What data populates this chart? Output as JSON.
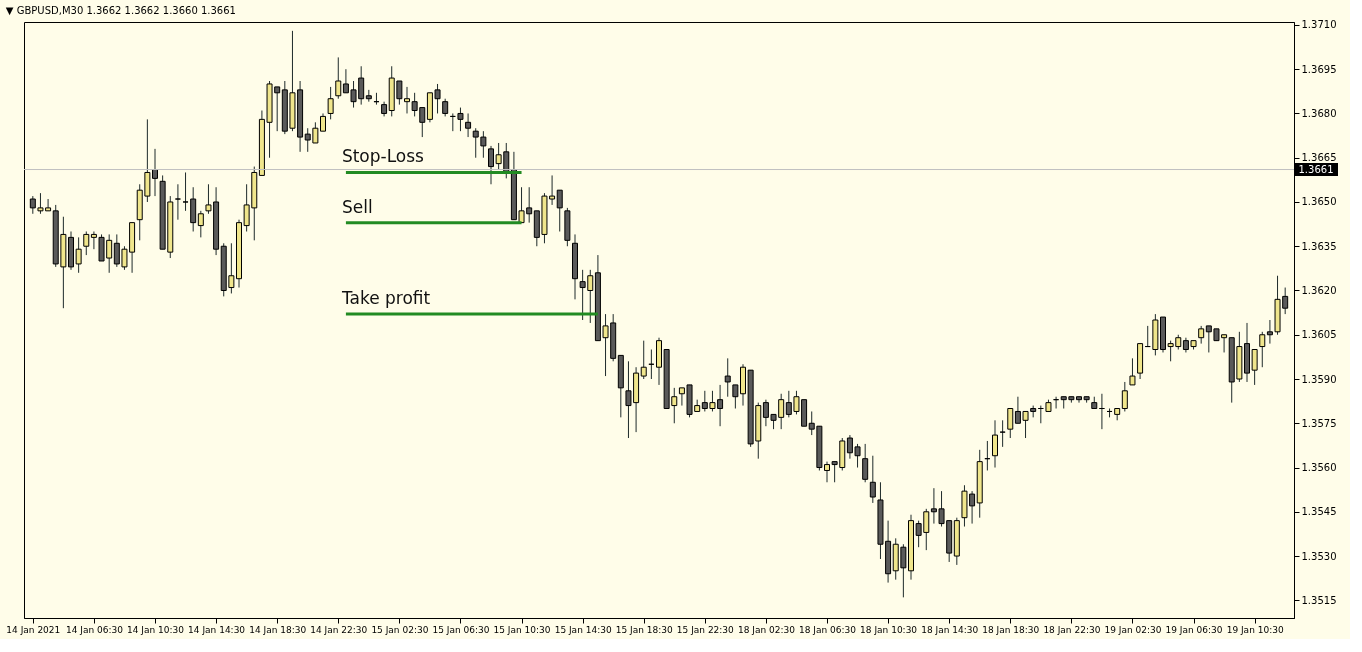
{
  "chart_data": {
    "type": "candlestick",
    "title": "▼ GBPUSD,M30  1.3662 1.3662 1.3660 1.3661",
    "categories": [
      "14 Jan 2021",
      null,
      null,
      null,
      null,
      null,
      null,
      null,
      "14 Jan 06:30",
      null,
      null,
      null,
      null,
      null,
      null,
      null,
      "14 Jan 10:30",
      null,
      null,
      null,
      null,
      null,
      null,
      null,
      "14 Jan 14:30",
      null,
      null,
      null,
      null,
      null,
      null,
      null,
      "14 Jan 18:30",
      null,
      null,
      null,
      null,
      null,
      null,
      null,
      "14 Jan 22:30",
      null,
      null,
      null,
      null,
      null,
      null,
      null,
      "15 Jan 02:30",
      null,
      null,
      null,
      null,
      null,
      null,
      null,
      "15 Jan 06:30",
      null,
      null,
      null,
      null,
      null,
      null,
      null,
      "15 Jan 10:30",
      null,
      null,
      null,
      null,
      null,
      null,
      null,
      "15 Jan 14:30",
      null,
      null,
      null,
      null,
      null,
      null,
      null,
      "15 Jan 18:30",
      null,
      null,
      null,
      null,
      null,
      null,
      null,
      "15 Jan 22:30",
      null,
      null,
      null,
      null,
      null,
      null,
      null,
      "18 Jan 02:30",
      null,
      null,
      null,
      null,
      null,
      null,
      null,
      "18 Jan 06:30",
      null,
      null,
      null,
      null,
      null,
      null,
      null,
      "18 Jan 10:30",
      null,
      null,
      null,
      null,
      null,
      null,
      null,
      "18 Jan 14:30",
      null,
      null,
      null,
      null,
      null,
      null,
      null,
      "18 Jan 18:30",
      null,
      null,
      null,
      null,
      null,
      null,
      null,
      "18 Jan 22:30",
      null,
      null,
      null,
      null,
      null,
      null,
      null,
      "19 Jan 02:30",
      null,
      null,
      null,
      null,
      null,
      null,
      null,
      "19 Jan 06:30",
      null,
      null,
      null,
      null,
      null,
      null,
      null,
      "19 Jan 10:30",
      null,
      null,
      null,
      null
    ],
    "ohlc": [
      [
        1.3651,
        1.3652,
        1.3646,
        1.3648
      ],
      [
        1.3647,
        1.3653,
        1.3646,
        1.3648
      ],
      [
        1.3647,
        1.3651,
        1.3647,
        1.3648
      ],
      [
        1.3647,
        1.3649,
        1.3628,
        1.3629
      ],
      [
        1.3628,
        1.3645,
        1.3614,
        1.3639
      ],
      [
        1.3638,
        1.364,
        1.3627,
        1.3628
      ],
      [
        1.3629,
        1.3638,
        1.3626,
        1.3634
      ],
      [
        1.3635,
        1.364,
        1.3632,
        1.3639
      ],
      [
        1.3638,
        1.364,
        1.3634,
        1.3639
      ],
      [
        1.3638,
        1.3639,
        1.363,
        1.363
      ],
      [
        1.3631,
        1.3639,
        1.3626,
        1.3637
      ],
      [
        1.3636,
        1.3639,
        1.3628,
        1.3629
      ],
      [
        1.3628,
        1.3635,
        1.3627,
        1.3634
      ],
      [
        1.3633,
        1.3643,
        1.3626,
        1.3643
      ],
      [
        1.3644,
        1.3656,
        1.3637,
        1.3654
      ],
      [
        1.3652,
        1.3678,
        1.365,
        1.366
      ],
      [
        1.3661,
        1.3668,
        1.3652,
        1.3658
      ],
      [
        1.3657,
        1.3659,
        1.3634,
        1.3634
      ],
      [
        1.3633,
        1.3652,
        1.3631,
        1.365
      ],
      [
        1.3651,
        1.3656,
        1.3644,
        1.3651
      ],
      [
        1.365,
        1.366,
        1.3647,
        1.365
      ],
      [
        1.3651,
        1.3655,
        1.364,
        1.3643
      ],
      [
        1.3642,
        1.3647,
        1.3638,
        1.3646
      ],
      [
        1.3647,
        1.3656,
        1.3646,
        1.3649
      ],
      [
        1.365,
        1.3655,
        1.3632,
        1.3634
      ],
      [
        1.3635,
        1.3636,
        1.3618,
        1.362
      ],
      [
        1.3621,
        1.3636,
        1.3619,
        1.3625
      ],
      [
        1.3624,
        1.3644,
        1.3621,
        1.3643
      ],
      [
        1.3642,
        1.3656,
        1.364,
        1.3649
      ],
      [
        1.3648,
        1.3662,
        1.3637,
        1.366
      ],
      [
        1.3659,
        1.3681,
        1.3659,
        1.3678
      ],
      [
        1.3677,
        1.3691,
        1.3665,
        1.369
      ],
      [
        1.3689,
        1.3689,
        1.3674,
        1.3687
      ],
      [
        1.3688,
        1.3691,
        1.3673,
        1.3674
      ],
      [
        1.3675,
        1.3708,
        1.3674,
        1.3687
      ],
      [
        1.3688,
        1.3691,
        1.3667,
        1.3672
      ],
      [
        1.3673,
        1.3675,
        1.3667,
        1.3671
      ],
      [
        1.367,
        1.3677,
        1.367,
        1.3675
      ],
      [
        1.3674,
        1.368,
        1.3674,
        1.3679
      ],
      [
        1.368,
        1.3689,
        1.3678,
        1.3685
      ],
      [
        1.3686,
        1.3699,
        1.3685,
        1.3691
      ],
      [
        1.369,
        1.3695,
        1.3687,
        1.3687
      ],
      [
        1.3688,
        1.3691,
        1.3682,
        1.3684
      ],
      [
        1.3692,
        1.3696,
        1.3683,
        1.3685
      ],
      [
        1.3686,
        1.3688,
        1.3684,
        1.3685
      ],
      [
        1.3684,
        1.3687,
        1.3683,
        1.3684
      ],
      [
        1.3683,
        1.3684,
        1.3679,
        1.368
      ],
      [
        1.3681,
        1.3696,
        1.3679,
        1.3692
      ],
      [
        1.3691,
        1.3691,
        1.3683,
        1.3685
      ],
      [
        1.3684,
        1.3689,
        1.368,
        1.3685
      ],
      [
        1.3684,
        1.3687,
        1.3679,
        1.3681
      ],
      [
        1.3682,
        1.3682,
        1.3672,
        1.3677
      ],
      [
        1.3678,
        1.3687,
        1.3677,
        1.3687
      ],
      [
        1.3688,
        1.369,
        1.368,
        1.3685
      ],
      [
        1.3684,
        1.3685,
        1.3679,
        1.368
      ],
      [
        1.3679,
        1.368,
        1.3674,
        1.3679
      ],
      [
        1.368,
        1.3682,
        1.3674,
        1.3678
      ],
      [
        1.3677,
        1.368,
        1.3672,
        1.3675
      ],
      [
        1.3674,
        1.3675,
        1.3665,
        1.3672
      ],
      [
        1.3672,
        1.3674,
        1.3665,
        1.3669
      ],
      [
        1.3668,
        1.3669,
        1.3656,
        1.3662
      ],
      [
        1.3663,
        1.367,
        1.3661,
        1.3666
      ],
      [
        1.3667,
        1.367,
        1.3658,
        1.366
      ],
      [
        1.3661,
        1.3667,
        1.3644,
        1.3644
      ],
      [
        1.3643,
        1.3655,
        1.3643,
        1.3647
      ],
      [
        1.3648,
        1.3655,
        1.3643,
        1.3646
      ],
      [
        1.3647,
        1.3647,
        1.3635,
        1.3638
      ],
      [
        1.3639,
        1.3653,
        1.3636,
        1.3652
      ],
      [
        1.3651,
        1.3659,
        1.3649,
        1.3652
      ],
      [
        1.3654,
        1.3654,
        1.364,
        1.3648
      ],
      [
        1.3647,
        1.3648,
        1.3635,
        1.3637
      ],
      [
        1.3636,
        1.3639,
        1.3617,
        1.3624
      ],
      [
        1.3623,
        1.3627,
        1.361,
        1.3621
      ],
      [
        1.362,
        1.3627,
        1.3609,
        1.3625
      ],
      [
        1.3626,
        1.3632,
        1.3603,
        1.3603
      ],
      [
        1.3604,
        1.3612,
        1.3591,
        1.3608
      ],
      [
        1.3609,
        1.3612,
        1.3596,
        1.3597
      ],
      [
        1.3598,
        1.3598,
        1.3577,
        1.3587
      ],
      [
        1.3586,
        1.3596,
        1.357,
        1.3581
      ],
      [
        1.3582,
        1.3594,
        1.3572,
        1.3592
      ],
      [
        1.3591,
        1.3603,
        1.359,
        1.3594
      ],
      [
        1.3595,
        1.36,
        1.359,
        1.3595
      ],
      [
        1.3594,
        1.3604,
        1.3588,
        1.3603
      ],
      [
        1.36,
        1.36,
        1.358,
        1.358
      ],
      [
        1.3581,
        1.3587,
        1.3575,
        1.3584
      ],
      [
        1.3585,
        1.3587,
        1.3581,
        1.3587
      ],
      [
        1.3588,
        1.3588,
        1.3577,
        1.3578
      ],
      [
        1.3579,
        1.3583,
        1.3579,
        1.3581
      ],
      [
        1.3582,
        1.3586,
        1.3579,
        1.358
      ],
      [
        1.358,
        1.3586,
        1.3579,
        1.3582
      ],
      [
        1.3583,
        1.3588,
        1.3574,
        1.358
      ],
      [
        1.3591,
        1.3597,
        1.3584,
        1.3589
      ],
      [
        1.3588,
        1.3588,
        1.358,
        1.3584
      ],
      [
        1.3585,
        1.3595,
        1.3581,
        1.3594
      ],
      [
        1.3593,
        1.3593,
        1.3567,
        1.3568
      ],
      [
        1.3569,
        1.3582,
        1.3563,
        1.3581
      ],
      [
        1.3582,
        1.3583,
        1.3574,
        1.3577
      ],
      [
        1.3578,
        1.3578,
        1.3573,
        1.3576
      ],
      [
        1.3577,
        1.3585,
        1.3573,
        1.3583
      ],
      [
        1.3582,
        1.3586,
        1.3577,
        1.3578
      ],
      [
        1.3579,
        1.3586,
        1.3578,
        1.3584
      ],
      [
        1.3583,
        1.3583,
        1.3574,
        1.3574
      ],
      [
        1.3575,
        1.3579,
        1.3571,
        1.3573
      ],
      [
        1.3574,
        1.3574,
        1.3559,
        1.356
      ],
      [
        1.3559,
        1.3562,
        1.3555,
        1.3561
      ],
      [
        1.3562,
        1.3562,
        1.3555,
        1.3561
      ],
      [
        1.356,
        1.357,
        1.3559,
        1.3569
      ],
      [
        1.357,
        1.3571,
        1.3563,
        1.3565
      ],
      [
        1.3567,
        1.3568,
        1.356,
        1.3564
      ],
      [
        1.3563,
        1.3568,
        1.3555,
        1.3556
      ],
      [
        1.3555,
        1.3564,
        1.3548,
        1.355
      ],
      [
        1.3549,
        1.3555,
        1.3529,
        1.3534
      ],
      [
        1.3535,
        1.3542,
        1.3521,
        1.3524
      ],
      [
        1.3525,
        1.3536,
        1.3522,
        1.3534
      ],
      [
        1.3533,
        1.3534,
        1.3516,
        1.3526
      ],
      [
        1.3525,
        1.3544,
        1.3522,
        1.3542
      ],
      [
        1.3541,
        1.3542,
        1.3533,
        1.3537
      ],
      [
        1.3538,
        1.3546,
        1.3532,
        1.3545
      ],
      [
        1.3546,
        1.3553,
        1.3541,
        1.3545
      ],
      [
        1.3546,
        1.3552,
        1.354,
        1.3541
      ],
      [
        1.3542,
        1.3542,
        1.3528,
        1.3531
      ],
      [
        1.353,
        1.3543,
        1.3527,
        1.3542
      ],
      [
        1.3543,
        1.3554,
        1.354,
        1.3552
      ],
      [
        1.3551,
        1.3552,
        1.3541,
        1.3547
      ],
      [
        1.3548,
        1.3566,
        1.3543,
        1.3562
      ],
      [
        1.3563,
        1.3569,
        1.3559,
        1.3563
      ],
      [
        1.3564,
        1.3576,
        1.356,
        1.3571
      ],
      [
        1.3572,
        1.3576,
        1.3567,
        1.3572
      ],
      [
        1.3573,
        1.358,
        1.357,
        1.358
      ],
      [
        1.3579,
        1.3584,
        1.3575,
        1.3575
      ],
      [
        1.3576,
        1.3579,
        1.357,
        1.3579
      ],
      [
        1.358,
        1.3581,
        1.3577,
        1.3579
      ],
      [
        1.358,
        1.3581,
        1.3575,
        1.358
      ],
      [
        1.3579,
        1.3583,
        1.3579,
        1.3582
      ],
      [
        1.3583,
        1.3584,
        1.358,
        1.3583
      ],
      [
        1.3584,
        1.3584,
        1.358,
        1.3583
      ],
      [
        1.3584,
        1.3584,
        1.3582,
        1.3583
      ],
      [
        1.3584,
        1.3584,
        1.3582,
        1.3583
      ],
      [
        1.3584,
        1.3584,
        1.3582,
        1.3583
      ],
      [
        1.3582,
        1.3584,
        1.358,
        1.358
      ],
      [
        1.358,
        1.3585,
        1.3573,
        1.358
      ],
      [
        1.3579,
        1.358,
        1.3577,
        1.3579
      ],
      [
        1.3578,
        1.358,
        1.3576,
        1.358
      ],
      [
        1.358,
        1.3589,
        1.3579,
        1.3586
      ],
      [
        1.3588,
        1.3597,
        1.3588,
        1.3591
      ],
      [
        1.3592,
        1.3602,
        1.359,
        1.3602
      ],
      [
        1.3601,
        1.3608,
        1.3601,
        1.3601
      ],
      [
        1.36,
        1.3612,
        1.3598,
        1.361
      ],
      [
        1.3611,
        1.3611,
        1.3599,
        1.36
      ],
      [
        1.3601,
        1.3603,
        1.3596,
        1.3602
      ],
      [
        1.3601,
        1.3605,
        1.36,
        1.3604
      ],
      [
        1.3603,
        1.3604,
        1.3599,
        1.36
      ],
      [
        1.3601,
        1.3603,
        1.36,
        1.3603
      ],
      [
        1.3604,
        1.3608,
        1.3602,
        1.3607
      ],
      [
        1.3608,
        1.3608,
        1.3599,
        1.3606
      ],
      [
        1.3607,
        1.3607,
        1.3603,
        1.3603
      ],
      [
        1.3604,
        1.3605,
        1.3599,
        1.3605
      ],
      [
        1.3604,
        1.3604,
        1.3582,
        1.3589
      ],
      [
        1.359,
        1.3606,
        1.3589,
        1.3601
      ],
      [
        1.3602,
        1.3609,
        1.3589,
        1.3592
      ],
      [
        1.3593,
        1.36,
        1.3588,
        1.36
      ],
      [
        1.3601,
        1.3606,
        1.3594,
        1.3605
      ],
      [
        1.3606,
        1.361,
        1.3602,
        1.3605
      ],
      [
        1.3606,
        1.3625,
        1.3605,
        1.3617
      ],
      [
        1.3618,
        1.3621,
        1.3612,
        1.3614
      ]
    ],
    "colors": [
      "#5a5a5a",
      "#f0e68c",
      "#f0e68c",
      "#5a5a5a",
      "#f0e68c",
      "#5a5a5a",
      "#f0e68c",
      "#f0e68c",
      "#f0e68c",
      "#5a5a5a",
      "#f0e68c",
      "#5a5a5a",
      "#f0e68c",
      "#f0e68c",
      "#f0e68c",
      "#f0e68c",
      "#5a5a5a",
      "#5a5a5a",
      "#f0e68c",
      "#000000",
      "#000000",
      "#5a5a5a",
      "#f0e68c",
      "#f0e68c",
      "#5a5a5a",
      "#5a5a5a",
      "#f0e68c",
      "#f0e68c",
      "#f0e68c",
      "#f0e68c",
      "#f0e68c",
      "#f0e68c",
      "#5a5a5a",
      "#5a5a5a",
      "#f0e68c",
      "#5a5a5a",
      "#5a5a5a",
      "#f0e68c",
      "#f0e68c",
      "#f0e68c",
      "#f0e68c",
      "#5a5a5a",
      "#5a5a5a",
      "#5a5a5a",
      "#5a5a5a",
      "#000000",
      "#5a5a5a",
      "#f0e68c",
      "#5a5a5a",
      "#f0e68c",
      "#5a5a5a",
      "#5a5a5a",
      "#f0e68c",
      "#5a5a5a",
      "#5a5a5a",
      "#000000",
      "#5a5a5a",
      "#5a5a5a",
      "#5a5a5a",
      "#5a5a5a",
      "#5a5a5a",
      "#f0e68c",
      "#5a5a5a",
      "#5a5a5a",
      "#f0e68c",
      "#5a5a5a",
      "#5a5a5a",
      "#f0e68c",
      "#f0e68c",
      "#5a5a5a",
      "#5a5a5a",
      "#5a5a5a",
      "#5a5a5a",
      "#f0e68c",
      "#5a5a5a",
      "#f0e68c",
      "#5a5a5a",
      "#5a5a5a",
      "#5a5a5a",
      "#f0e68c",
      "#f0e68c",
      "#000000",
      "#f0e68c",
      "#5a5a5a",
      "#f0e68c",
      "#f0e68c",
      "#5a5a5a",
      "#f0e68c",
      "#5a5a5a",
      "#f0e68c",
      "#5a5a5a",
      "#5a5a5a",
      "#5a5a5a",
      "#f0e68c",
      "#5a5a5a",
      "#f0e68c",
      "#5a5a5a",
      "#5a5a5a",
      "#f0e68c",
      "#5a5a5a",
      "#f0e68c",
      "#5a5a5a",
      "#5a5a5a",
      "#5a5a5a",
      "#f0e68c",
      "#5a5a5a",
      "#f0e68c",
      "#5a5a5a",
      "#5a5a5a",
      "#5a5a5a",
      "#5a5a5a",
      "#5a5a5a",
      "#5a5a5a",
      "#f0e68c",
      "#5a5a5a",
      "#f0e68c",
      "#5a5a5a",
      "#f0e68c",
      "#5a5a5a",
      "#5a5a5a",
      "#5a5a5a",
      "#f0e68c",
      "#f0e68c",
      "#5a5a5a",
      "#f0e68c",
      "#000000",
      "#f0e68c",
      "#000000",
      "#f0e68c",
      "#5a5a5a",
      "#f0e68c",
      "#5a5a5a",
      "#000000",
      "#f0e68c",
      "#000000",
      "#5a5a5a",
      "#5a5a5a",
      "#5a5a5a",
      "#5a5a5a",
      "#5a5a5a",
      "#000000",
      "#000000",
      "#f0e68c",
      "#f0e68c",
      "#f0e68c",
      "#f0e68c",
      "#000000",
      "#f0e68c",
      "#5a5a5a",
      "#f0e68c",
      "#f0e68c",
      "#5a5a5a",
      "#f0e68c",
      "#f0e68c",
      "#5a5a5a",
      "#5a5a5a",
      "#f0e68c",
      "#5a5a5a",
      "#f0e68c",
      "#5a5a5a",
      "#f0e68c",
      "#f0e68c",
      "#5a5a5a",
      "#f0e68c",
      "#5a5a5a"
    ],
    "series": [
      {
        "type": "line",
        "name": "Stop-Loss",
        "color": "#228b22",
        "values": [
          null,
          null,
          null,
          null,
          null,
          null,
          null,
          null,
          null,
          null,
          null,
          null,
          null,
          null,
          null,
          null,
          null,
          null,
          null,
          null,
          null,
          null,
          null,
          null,
          null,
          null,
          null,
          null,
          null,
          null,
          null,
          null,
          null,
          null,
          null,
          null,
          null,
          null,
          null,
          null,
          null,
          1.366,
          1.366,
          1.366,
          1.366,
          1.366,
          1.366,
          1.366,
          1.366,
          1.366,
          1.366,
          1.366,
          1.366,
          1.366,
          1.366,
          1.366,
          1.366,
          1.366,
          1.366,
          1.366,
          1.366,
          1.366,
          1.366,
          1.366,
          1.366,
          null,
          null,
          null,
          null,
          null,
          null,
          null,
          null,
          null,
          null,
          null,
          null,
          null,
          null,
          null,
          null,
          null,
          null,
          null,
          null,
          null,
          null,
          null,
          null,
          null,
          null,
          null,
          null,
          null,
          null,
          null,
          null,
          null,
          null,
          null,
          null,
          null,
          null,
          null,
          null,
          null,
          null,
          null,
          null,
          null,
          null,
          null,
          null,
          null,
          null,
          null,
          null,
          null,
          null,
          null,
          null,
          null,
          null,
          null,
          null,
          null,
          null,
          null,
          null,
          null,
          null,
          null,
          null,
          null,
          null,
          null,
          null,
          null,
          null,
          null,
          null,
          null,
          null,
          null,
          null,
          null,
          null,
          null,
          null,
          null,
          null,
          null,
          null,
          null,
          null,
          null,
          null,
          null,
          null,
          null,
          null,
          null,
          null,
          null,
          null
        ]
      },
      {
        "type": "line",
        "name": "Sell",
        "color": "#228b22",
        "values": [
          null,
          null,
          null,
          null,
          null,
          null,
          null,
          null,
          null,
          null,
          null,
          null,
          null,
          null,
          null,
          null,
          null,
          null,
          null,
          null,
          null,
          null,
          null,
          null,
          null,
          null,
          null,
          null,
          null,
          null,
          null,
          null,
          null,
          null,
          null,
          null,
          null,
          null,
          null,
          null,
          null,
          1.3643,
          1.3643,
          1.3643,
          1.3643,
          1.3643,
          1.3643,
          1.3643,
          1.3643,
          1.3643,
          1.3643,
          1.3643,
          1.3643,
          1.3643,
          1.3643,
          1.3643,
          1.3643,
          1.3643,
          1.3643,
          1.3643,
          1.3643,
          1.3643,
          1.3643,
          1.3643,
          1.3643,
          null,
          null,
          null,
          null,
          null,
          null,
          null,
          null,
          null,
          null,
          null,
          null,
          null,
          null,
          null,
          null,
          null,
          null,
          null,
          null,
          null,
          null,
          null,
          null,
          null,
          null,
          null,
          null,
          null,
          null,
          null,
          null,
          null,
          null,
          null,
          null,
          null,
          null,
          null,
          null,
          null,
          null,
          null,
          null,
          null,
          null,
          null,
          null,
          null,
          null,
          null,
          null,
          null,
          null,
          null,
          null,
          null,
          null,
          null,
          null,
          null,
          null,
          null,
          null,
          null,
          null,
          null,
          null,
          null,
          null,
          null,
          null,
          null,
          null,
          null,
          null,
          null,
          null,
          null,
          null,
          null,
          null,
          null,
          null,
          null,
          null,
          null,
          null,
          null,
          null,
          null,
          null,
          null,
          null,
          null,
          null,
          null,
          null,
          null,
          null
        ]
      },
      {
        "type": "line",
        "name": "Take profit",
        "color": "#228b22",
        "values": [
          null,
          null,
          null,
          null,
          null,
          null,
          null,
          null,
          null,
          null,
          null,
          null,
          null,
          null,
          null,
          null,
          null,
          null,
          null,
          null,
          null,
          null,
          null,
          null,
          null,
          null,
          null,
          null,
          null,
          null,
          null,
          null,
          null,
          null,
          null,
          null,
          null,
          null,
          null,
          null,
          null,
          1.3612,
          1.3612,
          1.3612,
          1.3612,
          1.3612,
          1.3612,
          1.3612,
          1.3612,
          1.3612,
          1.3612,
          1.3612,
          1.3612,
          1.3612,
          1.3612,
          1.3612,
          1.3612,
          1.3612,
          1.3612,
          1.3612,
          1.3612,
          1.3612,
          1.3612,
          1.3612,
          1.3612,
          1.3612,
          1.3612,
          1.3612,
          1.3612,
          1.3612,
          1.3612,
          1.3612,
          1.3612,
          1.3612,
          1.3612,
          null,
          null,
          null,
          null,
          null,
          null,
          null,
          null,
          null,
          null,
          null,
          null,
          null,
          null,
          null,
          null,
          null,
          null,
          null,
          null,
          null,
          null,
          null,
          null,
          null,
          null,
          null,
          null,
          null,
          null,
          null,
          null,
          null,
          null,
          null,
          null,
          null,
          null,
          null,
          null,
          null,
          null,
          null,
          null,
          null,
          null,
          null,
          null,
          null,
          null,
          null,
          null,
          null,
          null,
          null,
          null,
          null,
          null,
          null,
          null,
          null,
          null,
          null,
          null,
          null,
          null,
          null,
          null,
          null,
          null,
          null,
          null,
          null,
          null,
          null,
          null,
          null,
          null,
          null,
          null,
          null,
          null,
          null,
          null,
          null,
          null,
          null,
          null,
          null,
          null
        ]
      }
    ],
    "ylim": [
      1.3509,
      1.3711
    ],
    "yticks": [
      1.3515,
      {
        "value": 1.353,
        "label": "1.3530"
      },
      1.3545,
      {
        "value": 1.356,
        "label": "1.3560"
      },
      1.3575,
      {
        "value": 1.359,
        "label": "1.3590"
      },
      1.3605,
      {
        "value": 1.362,
        "label": "1.3620"
      },
      1.3635,
      {
        "value": 1.365,
        "label": "1.3650"
      },
      1.3665,
      {
        "value": 1.368,
        "label": "1.3680"
      },
      1.3695,
      {
        "value": 1.371,
        "label": "1.3710"
      }
    ],
    "ref_lines": [
      {
        "axis": "y",
        "value": 1.3661,
        "label": "1.3661",
        "color": "#c0c0c0"
      }
    ],
    "grid": false
  }
}
